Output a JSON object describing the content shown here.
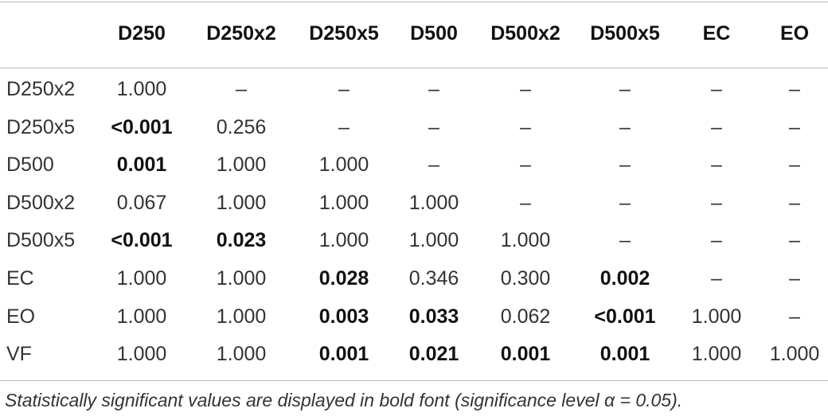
{
  "table": {
    "header": [
      "D250",
      "D250x2",
      "D250x5",
      "D500",
      "D500x2",
      "D500x5",
      "EC",
      "EO"
    ],
    "rows": [
      {
        "label": "D250x2",
        "cells": [
          "1.000",
          "–",
          "–",
          "–",
          "–",
          "–",
          "–",
          "–"
        ]
      },
      {
        "label": "D250x5",
        "cells": [
          {
            "text": "<0.001",
            "bold": true
          },
          "0.256",
          "–",
          "–",
          "–",
          "–",
          "–",
          "–"
        ]
      },
      {
        "label": "D500",
        "cells": [
          {
            "text": "0.001",
            "bold": true
          },
          "1.000",
          "1.000",
          "–",
          "–",
          "–",
          "–",
          "–"
        ]
      },
      {
        "label": "D500x2",
        "cells": [
          "0.067",
          "1.000",
          "1.000",
          "1.000",
          "–",
          "–",
          "–",
          "–"
        ]
      },
      {
        "label": "D500x5",
        "cells": [
          {
            "text": "<0.001",
            "bold": true
          },
          {
            "text": "0.023",
            "bold": true
          },
          "1.000",
          "1.000",
          "1.000",
          "–",
          "–",
          "–"
        ]
      },
      {
        "label": "EC",
        "cells": [
          "1.000",
          "1.000",
          {
            "text": "0.028",
            "bold": true
          },
          "0.346",
          "0.300",
          {
            "text": "0.002",
            "bold": true
          },
          "–",
          "–"
        ]
      },
      {
        "label": "EO",
        "cells": [
          "1.000",
          "1.000",
          {
            "text": "0.003",
            "bold": true
          },
          {
            "text": "0.033",
            "bold": true
          },
          "0.062",
          {
            "text": "<0.001",
            "bold": true
          },
          "1.000",
          "–"
        ]
      },
      {
        "label": "VF",
        "cells": [
          "1.000",
          "1.000",
          {
            "text": "0.001",
            "bold": true
          },
          {
            "text": "0.021",
            "bold": true
          },
          {
            "text": "0.001",
            "bold": true
          },
          {
            "text": "0.001",
            "bold": true
          },
          "1.000",
          "1.000"
        ]
      }
    ],
    "footnote": "Statistically significant values are displayed in bold font (significance level α = 0.05)."
  }
}
